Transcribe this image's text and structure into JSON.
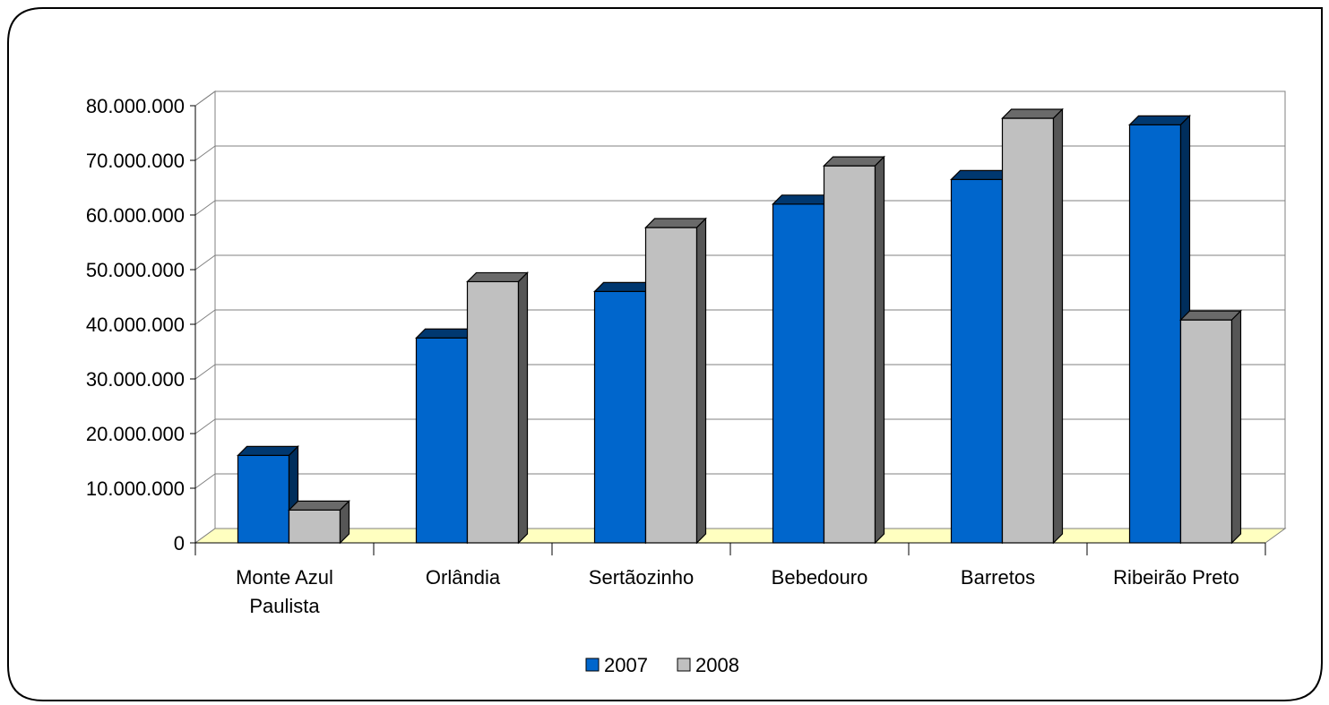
{
  "chart_data": {
    "type": "bar",
    "style": "3d-clustered-column",
    "categories": [
      [
        "Monte Azul",
        "Paulista"
      ],
      [
        "Orlândia"
      ],
      [
        "Sertãozinho"
      ],
      [
        "Bebedouro"
      ],
      [
        "Barretos"
      ],
      [
        "Ribeirão Preto"
      ]
    ],
    "series": [
      {
        "name": "2007",
        "color": "#0066cc",
        "values": [
          16000000,
          37500000,
          46000000,
          62000000,
          66500000,
          76500000
        ]
      },
      {
        "name": "2008",
        "color": "#c0c0c0",
        "values": [
          6000000,
          47800000,
          57700000,
          69000000,
          77700000,
          40800000
        ]
      }
    ],
    "yticks": [
      "0",
      "10.000.000",
      "20.000.000",
      "30.000.000",
      "40.000.000",
      "50.000.000",
      "60.000.000",
      "70.000.000",
      "80.000.000"
    ],
    "ylim": [
      0,
      80000000
    ],
    "grid": true,
    "legend_position": "bottom",
    "floor_color": "#ffffc0",
    "title": "",
    "xlabel": "",
    "ylabel": ""
  }
}
